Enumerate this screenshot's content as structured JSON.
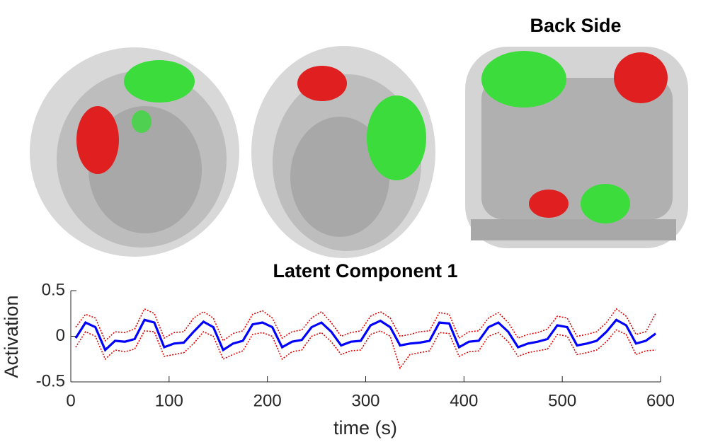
{
  "panels": {
    "back_title": "Back Side"
  },
  "chart_data": {
    "type": "line",
    "title": "Latent Component 1",
    "xlabel": "time (s)",
    "ylabel": "Activation",
    "x": [
      5,
      15,
      25,
      35,
      45,
      55,
      65,
      75,
      85,
      95,
      105,
      115,
      125,
      135,
      145,
      155,
      165,
      175,
      185,
      195,
      205,
      215,
      225,
      235,
      245,
      255,
      265,
      275,
      285,
      295,
      305,
      315,
      325,
      335,
      345,
      355,
      365,
      375,
      385,
      395,
      405,
      415,
      425,
      435,
      445,
      455,
      465,
      475,
      485,
      495,
      505,
      515,
      525,
      535,
      545,
      555,
      565,
      575,
      585,
      595
    ],
    "series": [
      {
        "name": "mean",
        "color": "#0000ff",
        "style": "solid",
        "values": [
          -0.02,
          0.15,
          0.1,
          -0.15,
          -0.05,
          -0.06,
          -0.03,
          0.18,
          0.15,
          -0.12,
          -0.08,
          -0.07,
          0.05,
          0.16,
          0.1,
          -0.15,
          -0.08,
          -0.05,
          0.13,
          0.15,
          0.1,
          -0.12,
          -0.06,
          -0.04,
          0.1,
          0.15,
          0.05,
          -0.1,
          -0.06,
          -0.05,
          0.12,
          0.17,
          0.1,
          -0.1,
          -0.08,
          -0.07,
          -0.05,
          0.15,
          0.14,
          -0.12,
          -0.06,
          -0.05,
          0.1,
          0.15,
          0.05,
          -0.12,
          -0.08,
          -0.06,
          -0.03,
          0.12,
          0.1,
          -0.1,
          -0.08,
          -0.05,
          0.05,
          0.18,
          0.12,
          -0.08,
          -0.05,
          0.03
        ]
      },
      {
        "name": "upper",
        "color": "#dd0000",
        "style": "dotted",
        "values": [
          0.1,
          0.24,
          0.2,
          -0.05,
          0.05,
          0.04,
          0.08,
          0.3,
          0.25,
          -0.02,
          0.04,
          0.05,
          0.2,
          0.27,
          0.2,
          -0.05,
          0.03,
          0.06,
          0.24,
          0.28,
          0.2,
          -0.02,
          0.05,
          0.07,
          0.2,
          0.27,
          0.15,
          0.0,
          0.04,
          0.06,
          0.22,
          0.27,
          0.2,
          0.0,
          0.02,
          0.05,
          0.06,
          0.26,
          0.24,
          -0.02,
          0.05,
          0.06,
          0.2,
          0.26,
          0.15,
          -0.02,
          0.02,
          0.04,
          0.08,
          0.22,
          0.2,
          0.0,
          0.02,
          0.05,
          0.15,
          0.3,
          0.22,
          0.02,
          0.05,
          0.25
        ]
      },
      {
        "name": "lower",
        "color": "#dd0000",
        "style": "dotted",
        "values": [
          -0.12,
          0.05,
          0.0,
          -0.25,
          -0.15,
          -0.17,
          -0.14,
          0.06,
          0.05,
          -0.22,
          -0.2,
          -0.18,
          -0.08,
          0.05,
          0.0,
          -0.25,
          -0.2,
          -0.16,
          0.02,
          0.04,
          0.0,
          -0.25,
          -0.17,
          -0.15,
          0.0,
          0.04,
          -0.06,
          -0.2,
          -0.16,
          -0.15,
          0.02,
          0.06,
          0.0,
          -0.35,
          -0.2,
          -0.18,
          -0.16,
          0.04,
          0.03,
          -0.22,
          -0.17,
          -0.16,
          0.0,
          0.04,
          -0.06,
          -0.22,
          -0.18,
          -0.16,
          -0.14,
          0.02,
          0.0,
          -0.2,
          -0.18,
          -0.15,
          -0.06,
          0.07,
          0.02,
          -0.2,
          -0.16,
          -0.15
        ]
      }
    ],
    "xlim": [
      0,
      600
    ],
    "xticks": [
      0,
      100,
      200,
      300,
      400,
      500,
      600
    ],
    "ylim": [
      -0.5,
      0.5
    ],
    "yticks": [
      -0.5,
      0,
      0.5
    ]
  }
}
